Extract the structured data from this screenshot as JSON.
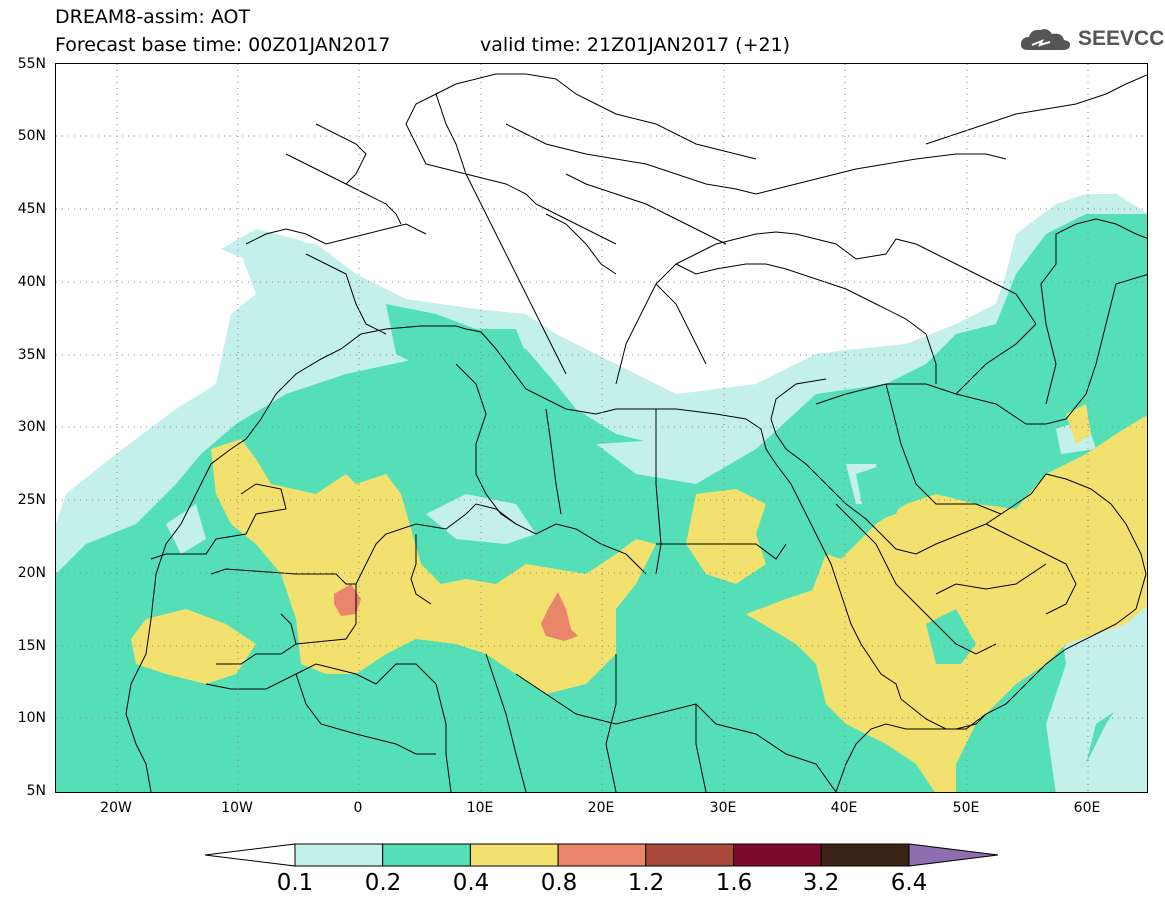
{
  "header": {
    "title": "DREAM8-assim: AOT",
    "base_time": "Forecast base time: 00Z01JAN2017",
    "valid_time": "valid time: 21Z01JAN2017 (+21)",
    "logo_text": "SEEVCCC"
  },
  "map": {
    "latitude_labels": [
      "55N",
      "50N",
      "45N",
      "40N",
      "35N",
      "30N",
      "25N",
      "20N",
      "15N",
      "10N",
      "5N"
    ],
    "longitude_labels": [
      "20W",
      "10W",
      "0",
      "10E",
      "20E",
      "30E",
      "40E",
      "50E",
      "60E"
    ],
    "extent": {
      "lon": [
        -25,
        65
      ],
      "lat": [
        5,
        55
      ]
    }
  },
  "legend": {
    "labels": [
      "0.1",
      "0.2",
      "0.4",
      "0.8",
      "1.2",
      "1.6",
      "3.2",
      "6.4"
    ],
    "colors": [
      "#c3f0eb",
      "#55dfb7",
      "#f3e16f",
      "#e8856a",
      "#a94a3c",
      "#7b0a2e",
      "#3b2415",
      "#8f6eb0"
    ],
    "below_color": "#ffffff"
  }
}
